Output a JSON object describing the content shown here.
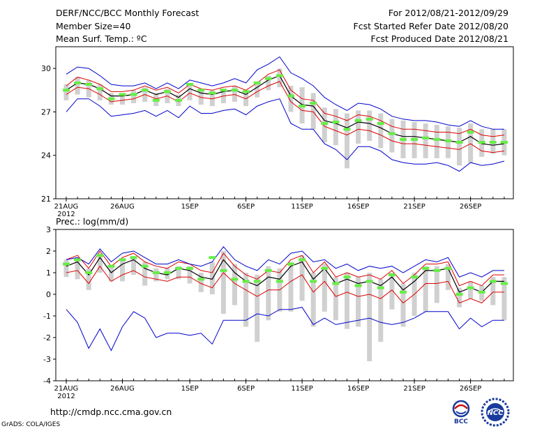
{
  "header": {
    "title": "DERF/NCC/BCC Monthly Forecast",
    "member_size": "Member Size=40",
    "variable": "Mean Surf. Temp.: ºC",
    "period": "For 2012/08/21-2012/09/29",
    "fcst_started": "Fcst Started Refer Date 2012/08/20",
    "fcst_produced": "Fcst Produced Date 2012/08/21"
  },
  "footer": {
    "url": "http://cmdp.ncc.cma.gov.cn",
    "credit": "GrADS: COLA/IGES",
    "logo_bcc_text": "BCC",
    "logo_ncc_text": "NCC"
  },
  "colors": {
    "mean": "#000000",
    "spread": "#dd0000",
    "extreme": "#0000cc",
    "box": "#d0d0d0",
    "obs": "#66ee44"
  },
  "chart_data": [
    {
      "type": "line",
      "title": "Mean Surf. Temp.: ºC",
      "x_start_label": "2012",
      "x_ticks": [
        "21AUG",
        "26AUG",
        "1SEP",
        "6SEP",
        "11SEP",
        "16SEP",
        "21SEP",
        "26SEP"
      ],
      "x_tick_days": [
        0,
        5,
        11,
        16,
        21,
        26,
        31,
        36
      ],
      "ylim": [
        21,
        31.5
      ],
      "y_ticks": [
        "21",
        "24",
        "27",
        "30"
      ],
      "y_tick_values": [
        21,
        24,
        27,
        30
      ],
      "series": [
        {
          "name": "ensemble mean",
          "color": "#000000",
          "values": [
            28.5,
            29,
            28.9,
            28.6,
            28.1,
            28.1,
            28.2,
            28.5,
            28.2,
            28.4,
            28,
            28.6,
            28.3,
            28.2,
            28.4,
            28.5,
            28.2,
            28.7,
            29.2,
            29.5,
            28.1,
            27.5,
            27.4,
            26.4,
            26.2,
            25.9,
            26.3,
            26.2,
            25.9,
            25.5,
            25.3,
            25.3,
            25.2,
            25.1,
            25,
            24.9,
            25.3,
            24.8,
            24.7,
            24.8
          ]
        },
        {
          "name": "mean + spread",
          "color": "#dd0000",
          "values": [
            28.8,
            29.4,
            29.2,
            28.9,
            28.4,
            28.4,
            28.5,
            28.8,
            28.5,
            28.7,
            28.3,
            28.9,
            28.6,
            28.5,
            28.7,
            28.8,
            28.5,
            29,
            29.6,
            29.9,
            28.5,
            27.9,
            27.8,
            26.9,
            26.7,
            26.4,
            26.8,
            26.7,
            26.4,
            26,
            25.8,
            25.8,
            25.7,
            25.6,
            25.6,
            25.5,
            25.8,
            25.4,
            25.3,
            25.4
          ]
        },
        {
          "name": "mean - spread",
          "color": "#dd0000",
          "values": [
            28.2,
            28.7,
            28.6,
            28.2,
            27.7,
            27.8,
            27.9,
            28.2,
            27.9,
            28.1,
            27.7,
            28.3,
            28,
            27.9,
            28.1,
            28.2,
            27.9,
            28.4,
            28.8,
            29.1,
            27.7,
            27.1,
            27,
            26,
            25.7,
            25.4,
            25.8,
            25.7,
            25.4,
            25,
            24.8,
            24.8,
            24.7,
            24.6,
            24.5,
            24.4,
            24.8,
            24.3,
            24.2,
            24.3
          ]
        },
        {
          "name": "ensemble max",
          "color": "#0000cc",
          "values": [
            29.6,
            30.1,
            30,
            29.5,
            28.9,
            28.8,
            28.8,
            29,
            28.6,
            29,
            28.6,
            29.2,
            29,
            28.8,
            29,
            29.3,
            29,
            29.9,
            30.3,
            30.8,
            29.7,
            29.3,
            28.8,
            28,
            27.5,
            27.1,
            27.6,
            27.5,
            27.2,
            26.7,
            26.5,
            26.4,
            26.4,
            26.3,
            26.1,
            26,
            26.4,
            26,
            25.8,
            25.8
          ]
        },
        {
          "name": "ensemble min",
          "color": "#0000cc",
          "values": [
            27,
            27.9,
            27.9,
            27.4,
            26.7,
            26.8,
            26.9,
            27.1,
            26.7,
            27.1,
            26.6,
            27.4,
            26.9,
            26.9,
            27.1,
            27.2,
            26.8,
            27.4,
            27.7,
            27.9,
            26.2,
            25.8,
            25.8,
            24.8,
            24.4,
            23.7,
            24.6,
            24.6,
            24.3,
            23.7,
            23.5,
            23.4,
            23.4,
            23.5,
            23.3,
            22.9,
            23.5,
            23.3,
            23.4,
            23.6
          ]
        }
      ],
      "box_series": {
        "name": "observation range",
        "low": [
          27.8,
          28.2,
          28,
          27.8,
          27.5,
          27.5,
          27.6,
          27.7,
          27.4,
          27.6,
          27.4,
          27.8,
          27.5,
          27.4,
          27.6,
          27.7,
          27.4,
          28,
          28.5,
          28.7,
          27,
          26.2,
          25.8,
          24.9,
          24.7,
          23.1,
          24.8,
          25,
          24.5,
          24.2,
          23.8,
          23.8,
          23.8,
          23.8,
          23.8,
          23.3,
          23.5,
          23.9,
          24.1,
          24
        ]
      },
      "box_series_high": [
        28.9,
        29.4,
        29.2,
        28.9,
        28.3,
        28.3,
        28.5,
        28.7,
        28.3,
        28.6,
        28.2,
        28.8,
        28.5,
        28.5,
        28.6,
        28.8,
        28.4,
        29.1,
        29.5,
        30,
        28.8,
        28.7,
        28.3,
        27.3,
        27.2,
        26.9,
        27.1,
        27.1,
        26.9,
        26.5,
        26.4,
        26.3,
        26.2,
        26.1,
        26,
        25.9,
        26.2,
        25.8,
        25.8,
        25.8
      ],
      "obs_marks": [
        28.5,
        29,
        28.9,
        28.6,
        27.9,
        28.2,
        28.2,
        28.5,
        27.8,
        28.4,
        27.8,
        28.9,
        28.5,
        28.3,
        28.5,
        28.5,
        28.4,
        29,
        29.3,
        29.5,
        28.1,
        27.4,
        27.6,
        26.2,
        26.3,
        25.8,
        26.4,
        26.5,
        26.2,
        25.5,
        25.1,
        25.1,
        25.2,
        25.1,
        25,
        24.9,
        25.6,
        24.9,
        24.9,
        24.9
      ]
    },
    {
      "type": "line",
      "title": "Prec.: log(mm/d)",
      "x_start_label": "2012",
      "x_ticks": [
        "21AUG",
        "26AUG",
        "1SEP",
        "6SEP",
        "11SEP",
        "16SEP",
        "21SEP",
        "26SEP"
      ],
      "x_tick_days": [
        0,
        5,
        11,
        16,
        21,
        26,
        31,
        36
      ],
      "ylim": [
        -4,
        3
      ],
      "y_ticks": [
        "-4",
        "-3",
        "-2",
        "-1",
        "0",
        "1",
        "2",
        "3"
      ],
      "y_tick_values": [
        -4,
        -3,
        -2,
        -1,
        0,
        1,
        2,
        3
      ],
      "series": [
        {
          "name": "ensemble mean",
          "color": "#000000",
          "values": [
            1.3,
            1.5,
            0.9,
            1.7,
            1,
            1.4,
            1.6,
            1.2,
            1,
            0.9,
            1.2,
            1.1,
            0.8,
            0.7,
            1.6,
            1,
            0.6,
            0.4,
            0.8,
            0.7,
            1.3,
            1.5,
            0.7,
            1.2,
            0.5,
            0.7,
            0.5,
            0.6,
            0.4,
            0.8,
            0.2,
            0.6,
            1.1,
            1.1,
            1.2,
            0.1,
            0.3,
            0.1,
            0.6,
            0.6
          ]
        },
        {
          "name": "mean + spread",
          "color": "#dd0000",
          "values": [
            1.6,
            1.8,
            1.2,
            2,
            1.3,
            1.7,
            1.9,
            1.5,
            1.3,
            1.2,
            1.5,
            1.4,
            1.1,
            1,
            1.9,
            1.3,
            0.9,
            0.7,
            1.1,
            1,
            1.6,
            1.8,
            1,
            1.5,
            0.8,
            1,
            0.8,
            0.9,
            0.7,
            1.1,
            0.5,
            0.9,
            1.4,
            1.4,
            1.5,
            0.4,
            0.6,
            0.4,
            0.9,
            0.9
          ]
        },
        {
          "name": "mean - spread",
          "color": "#dd0000",
          "values": [
            1,
            1.1,
            0.5,
            1.3,
            0.6,
            0.9,
            1.1,
            0.8,
            0.7,
            0.6,
            0.8,
            0.8,
            0.5,
            0.3,
            1,
            0.5,
            0.2,
            -0.1,
            0.2,
            0.2,
            0.6,
            0.9,
            0.1,
            0.6,
            -0.1,
            0.1,
            -0.1,
            0,
            -0.2,
            0.2,
            -0.4,
            0,
            0.5,
            0.5,
            0.6,
            -0.4,
            -0.2,
            -0.4,
            0.1,
            0.1
          ]
        },
        {
          "name": "ensemble max",
          "color": "#0000cc",
          "values": [
            1.6,
            1.7,
            1.4,
            2.1,
            1.5,
            1.9,
            2,
            1.7,
            1.4,
            1.4,
            1.6,
            1.4,
            1.3,
            1.5,
            2.2,
            1.6,
            1.3,
            1.1,
            1.6,
            1.4,
            1.9,
            2,
            1.5,
            1.6,
            1.2,
            1.4,
            1.1,
            1.3,
            1.2,
            1.3,
            1,
            1.3,
            1.6,
            1.5,
            1.7,
            0.8,
            1,
            0.8,
            1.1,
            1.1
          ]
        },
        {
          "name": "ensemble min",
          "color": "#0000cc",
          "values": [
            -0.7,
            -1.3,
            -2.5,
            -1.6,
            -2.6,
            -1.5,
            -0.8,
            -1.1,
            -2,
            -1.8,
            -1.8,
            -1.9,
            -1.8,
            -2.3,
            -1.2,
            -1.2,
            -1.2,
            -0.9,
            -1,
            -0.7,
            -0.7,
            -0.6,
            -1.4,
            -1.1,
            -1.4,
            -1.3,
            -1.2,
            -1.1,
            -1.3,
            -1.4,
            -1.3,
            -1.1,
            -0.8,
            -0.8,
            -0.8,
            -1.6,
            -1.1,
            -1.5,
            -1.2,
            -1.2
          ]
        }
      ],
      "box_series": {
        "name": "observation range",
        "low": [
          0.8,
          0.7,
          0.2,
          1,
          0.6,
          0.6,
          0.9,
          0.4,
          0.6,
          0.7,
          0.7,
          0.5,
          0.1,
          0,
          -0.9,
          -0.5,
          -1.5,
          -2.2,
          -1.2,
          -0.8,
          -0.8,
          -0.3,
          -1.5,
          -0.8,
          -1.2,
          -1.6,
          -1.5,
          -3.1,
          -2.2,
          -0.7,
          -1.5,
          -1,
          -0.8,
          -0.4,
          0.2,
          -0.6,
          -0.2,
          -0.3,
          -0.5,
          -1.2
        ]
      },
      "box_series_high": [
        1.6,
        1.7,
        1.2,
        1.9,
        1.3,
        1.6,
        1.7,
        1.5,
        1.2,
        1.2,
        1.3,
        1.3,
        1,
        1.5,
        2,
        1.4,
        1,
        0.9,
        1.3,
        1.2,
        1.5,
        1.8,
        1,
        1.4,
        0.8,
        1,
        0.8,
        1,
        0.7,
        1,
        0.5,
        1,
        1.3,
        1.3,
        1.4,
        0.3,
        0.6,
        0.4,
        0.8,
        0.8
      ],
      "obs_marks": [
        1.4,
        1.6,
        1,
        1.8,
        1.3,
        1.6,
        1.7,
        1.3,
        1,
        1,
        1.2,
        1.2,
        0.7,
        1.7,
        1.1,
        0.7,
        0.6,
        0.6,
        1.1,
        0.6,
        1.4,
        1.6,
        0.6,
        1.2,
        0.5,
        0.8,
        0.4,
        0.6,
        0.3,
        0.9,
        0.1,
        0.8,
        1.2,
        1.1,
        1.2,
        0,
        0.3,
        0.1,
        0.6,
        0.5
      ]
    }
  ]
}
